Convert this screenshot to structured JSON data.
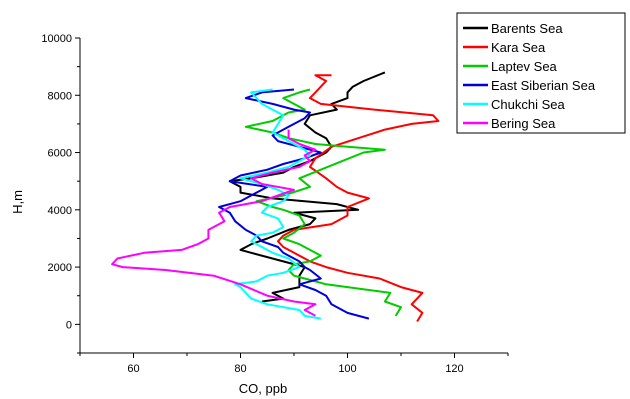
{
  "chart_data": {
    "type": "line",
    "xlabel": "CO, ppb",
    "ylabel": "H,m",
    "xlim": [
      50,
      130
    ],
    "ylim": [
      -1000,
      10000
    ],
    "xticks": [
      60,
      80,
      100,
      120
    ],
    "yticks": [
      0,
      2000,
      4000,
      6000,
      8000,
      10000
    ],
    "legend_position": "top-right",
    "series": [
      {
        "name": "Barents Sea",
        "color": "#000000",
        "points": [
          [
            84,
            800
          ],
          [
            88,
            900
          ],
          [
            86,
            1100
          ],
          [
            91,
            1300
          ],
          [
            91,
            1700
          ],
          [
            92,
            2000
          ],
          [
            88,
            2200
          ],
          [
            82,
            2500
          ],
          [
            80,
            2600
          ],
          [
            82,
            2800
          ],
          [
            85,
            3000
          ],
          [
            89,
            3300
          ],
          [
            93,
            3500
          ],
          [
            94,
            3700
          ],
          [
            90,
            3900
          ],
          [
            102,
            4000
          ],
          [
            98,
            4200
          ],
          [
            86,
            4400
          ],
          [
            80,
            4600
          ],
          [
            80,
            4800
          ],
          [
            78,
            5000
          ],
          [
            82,
            5100
          ],
          [
            88,
            5300
          ],
          [
            90,
            5500
          ],
          [
            93,
            5700
          ],
          [
            96,
            6000
          ],
          [
            97,
            6200
          ],
          [
            96,
            6500
          ],
          [
            94,
            6700
          ],
          [
            92,
            7000
          ],
          [
            93,
            7300
          ],
          [
            98,
            7500
          ],
          [
            97,
            7700
          ],
          [
            100,
            7900
          ],
          [
            100,
            8100
          ],
          [
            101,
            8300
          ],
          [
            103,
            8500
          ],
          [
            107,
            8800
          ]
        ]
      },
      {
        "name": "Kara Sea",
        "color": "#ff0000",
        "points": [
          [
            113,
            100
          ],
          [
            114,
            400
          ],
          [
            112,
            700
          ],
          [
            114,
            1100
          ],
          [
            110,
            1300
          ],
          [
            106,
            1600
          ],
          [
            100,
            1800
          ],
          [
            96,
            2000
          ],
          [
            93,
            2200
          ],
          [
            92,
            2300
          ],
          [
            90,
            2500
          ],
          [
            88,
            2700
          ],
          [
            87,
            2900
          ],
          [
            88,
            3100
          ],
          [
            90,
            3300
          ],
          [
            97,
            3500
          ],
          [
            100,
            3800
          ],
          [
            100,
            4100
          ],
          [
            104,
            4400
          ],
          [
            100,
            4600
          ],
          [
            98,
            4800
          ],
          [
            96,
            5100
          ],
          [
            93,
            5500
          ],
          [
            94,
            5800
          ],
          [
            97,
            6200
          ],
          [
            102,
            6500
          ],
          [
            107,
            6800
          ],
          [
            112,
            7000
          ],
          [
            117,
            7100
          ],
          [
            116,
            7300
          ],
          [
            105,
            7500
          ],
          [
            95,
            7700
          ],
          [
            93,
            7900
          ],
          [
            94,
            8100
          ],
          [
            95,
            8300
          ],
          [
            96,
            8500
          ],
          [
            94,
            8700
          ],
          [
            97,
            8700
          ]
        ]
      },
      {
        "name": "Laptev Sea",
        "color": "#00cc00",
        "points": [
          [
            109,
            300
          ],
          [
            110,
            600
          ],
          [
            107,
            800
          ],
          [
            108,
            1100
          ],
          [
            100,
            1300
          ],
          [
            96,
            1400
          ],
          [
            92,
            1600
          ],
          [
            90,
            1700
          ],
          [
            89,
            1900
          ],
          [
            90,
            2100
          ],
          [
            93,
            2200
          ],
          [
            95,
            2400
          ],
          [
            93,
            2600
          ],
          [
            91,
            2800
          ],
          [
            88,
            3000
          ],
          [
            90,
            3200
          ],
          [
            92,
            3500
          ],
          [
            91,
            3800
          ],
          [
            88,
            4000
          ],
          [
            86,
            4100
          ],
          [
            83,
            4300
          ],
          [
            88,
            4500
          ],
          [
            93,
            4800
          ],
          [
            91,
            5100
          ],
          [
            95,
            5400
          ],
          [
            99,
            5700
          ],
          [
            103,
            6000
          ],
          [
            107,
            6100
          ],
          [
            100,
            6200
          ],
          [
            94,
            6300
          ],
          [
            89,
            6500
          ],
          [
            86,
            6700
          ],
          [
            81,
            6900
          ],
          [
            86,
            7100
          ],
          [
            89,
            7400
          ],
          [
            92,
            7500
          ],
          [
            90,
            7700
          ],
          [
            88,
            7900
          ],
          [
            91,
            8100
          ],
          [
            93,
            8200
          ]
        ]
      },
      {
        "name": "East Siberian Sea",
        "color": "#0000dd",
        "points": [
          [
            104,
            200
          ],
          [
            100,
            400
          ],
          [
            97,
            700
          ],
          [
            96,
            1000
          ],
          [
            94,
            1200
          ],
          [
            91,
            1400
          ],
          [
            95,
            1600
          ],
          [
            93,
            1900
          ],
          [
            92,
            2000
          ],
          [
            91,
            2200
          ],
          [
            88,
            2500
          ],
          [
            87,
            2700
          ],
          [
            84,
            2900
          ],
          [
            83,
            3100
          ],
          [
            81,
            3300
          ],
          [
            79,
            3600
          ],
          [
            78,
            3900
          ],
          [
            76,
            4100
          ],
          [
            80,
            4300
          ],
          [
            83,
            4600
          ],
          [
            85,
            4800
          ],
          [
            78,
            5000
          ],
          [
            80,
            5200
          ],
          [
            85,
            5400
          ],
          [
            88,
            5600
          ],
          [
            92,
            5800
          ],
          [
            95,
            6000
          ],
          [
            91,
            6200
          ],
          [
            87,
            6400
          ],
          [
            86,
            6600
          ],
          [
            89,
            6900
          ],
          [
            92,
            7200
          ],
          [
            93,
            7400
          ],
          [
            90,
            7500
          ],
          [
            86,
            7700
          ],
          [
            81,
            7900
          ],
          [
            84,
            8100
          ],
          [
            90,
            8200
          ]
        ]
      },
      {
        "name": "Chukchi Sea",
        "color": "#00ffff",
        "points": [
          [
            95,
            200
          ],
          [
            92,
            300
          ],
          [
            91,
            500
          ],
          [
            85,
            700
          ],
          [
            82,
            900
          ],
          [
            81,
            1100
          ],
          [
            80,
            1300
          ],
          [
            79,
            1400
          ],
          [
            83,
            1500
          ],
          [
            85,
            1700
          ],
          [
            88,
            1800
          ],
          [
            91,
            2000
          ],
          [
            89,
            2300
          ],
          [
            86,
            2500
          ],
          [
            84,
            2700
          ],
          [
            82,
            2900
          ],
          [
            83,
            3100
          ],
          [
            86,
            3200
          ],
          [
            88,
            3400
          ],
          [
            87,
            3700
          ],
          [
            84,
            3900
          ],
          [
            85,
            4100
          ],
          [
            88,
            4300
          ],
          [
            89,
            4500
          ],
          [
            87,
            4700
          ],
          [
            84,
            4900
          ],
          [
            80,
            5100
          ],
          [
            85,
            5300
          ],
          [
            89,
            5500
          ],
          [
            91,
            5700
          ],
          [
            93,
            5900
          ],
          [
            92,
            6100
          ],
          [
            90,
            6300
          ],
          [
            88,
            6500
          ],
          [
            86,
            6700
          ],
          [
            87,
            7000
          ],
          [
            88,
            7300
          ],
          [
            86,
            7500
          ],
          [
            84,
            7700
          ],
          [
            83,
            7900
          ],
          [
            82,
            8100
          ],
          [
            86,
            8200
          ]
        ]
      },
      {
        "name": "Bering Sea",
        "color": "#ff00ff",
        "points": [
          [
            94,
            300
          ],
          [
            92,
            500
          ],
          [
            94,
            700
          ],
          [
            90,
            800
          ],
          [
            85,
            1000
          ],
          [
            80,
            1400
          ],
          [
            75,
            1700
          ],
          [
            66,
            1900
          ],
          [
            58,
            2000
          ],
          [
            56,
            2100
          ],
          [
            57,
            2300
          ],
          [
            62,
            2500
          ],
          [
            69,
            2600
          ],
          [
            72,
            2800
          ],
          [
            74,
            3000
          ],
          [
            74,
            3300
          ],
          [
            77,
            3600
          ],
          [
            76,
            3900
          ],
          [
            78,
            4100
          ],
          [
            84,
            4300
          ],
          [
            87,
            4500
          ],
          [
            90,
            4700
          ],
          [
            84,
            4900
          ],
          [
            82,
            5100
          ],
          [
            86,
            5300
          ],
          [
            91,
            5500
          ],
          [
            93,
            5700
          ],
          [
            92,
            5900
          ],
          [
            94,
            6100
          ],
          [
            91,
            6300
          ],
          [
            89,
            6500
          ],
          [
            89,
            6800
          ]
        ]
      }
    ]
  }
}
